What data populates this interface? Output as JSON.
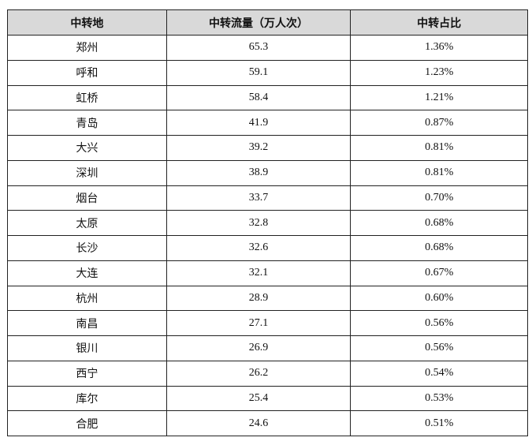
{
  "table": {
    "headers": [
      "中转地",
      "中转流量（万人次）",
      "中转占比"
    ],
    "rows": [
      [
        "郑州",
        "65.3",
        "1.36%"
      ],
      [
        "呼和",
        "59.1",
        "1.23%"
      ],
      [
        "虹桥",
        "58.4",
        "1.21%"
      ],
      [
        "青岛",
        "41.9",
        "0.87%"
      ],
      [
        "大兴",
        "39.2",
        "0.81%"
      ],
      [
        "深圳",
        "38.9",
        "0.81%"
      ],
      [
        "烟台",
        "33.7",
        "0.70%"
      ],
      [
        "太原",
        "32.8",
        "0.68%"
      ],
      [
        "长沙",
        "32.6",
        "0.68%"
      ],
      [
        "大连",
        "32.1",
        "0.67%"
      ],
      [
        "杭州",
        "28.9",
        "0.60%"
      ],
      [
        "南昌",
        "27.1",
        "0.56%"
      ],
      [
        "银川",
        "26.9",
        "0.56%"
      ],
      [
        "西宁",
        "26.2",
        "0.54%"
      ],
      [
        "库尔",
        "25.4",
        "0.53%"
      ],
      [
        "合肥",
        "24.6",
        "0.51%"
      ]
    ],
    "header_bg": "#d9d9d9"
  }
}
